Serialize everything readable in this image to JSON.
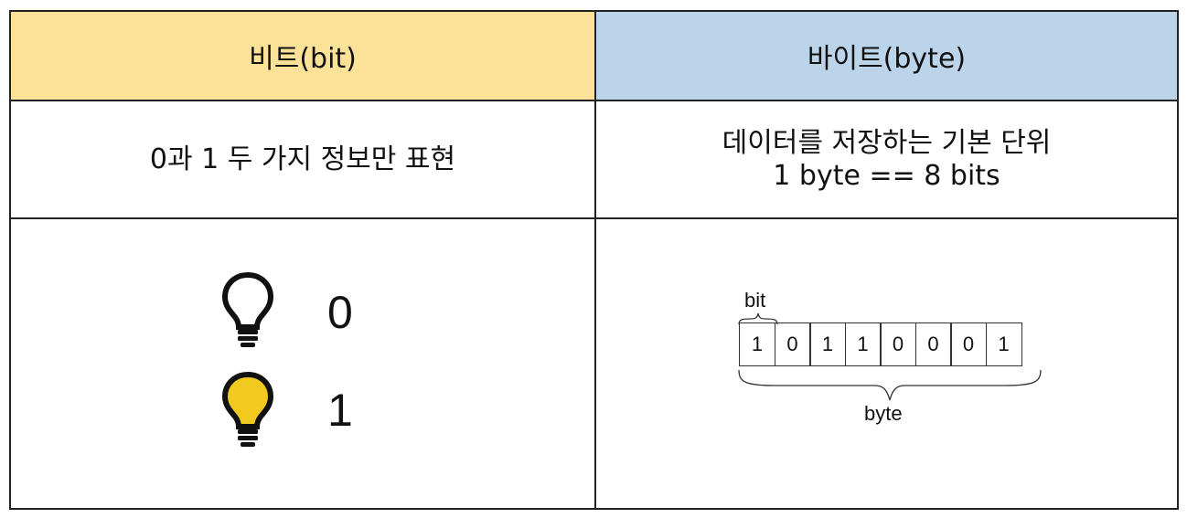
{
  "header": {
    "bit_title": "비트(bit)",
    "byte_title": "바이트(byte)",
    "bit_bg": "#fce299",
    "byte_bg": "#bcd4ea"
  },
  "description": {
    "bit": "0과 1 두 가지 정보만 표현",
    "byte_line1": "데이터를 저장하는 기본 단위",
    "byte_line2": "1 byte == 8 bits"
  },
  "illustration": {
    "off_value": "0",
    "on_value": "1",
    "off_icon": "lightbulb-outline-icon",
    "on_icon": "lightbulb-filled-icon",
    "on_color": "#f2c91e",
    "bit_label": "bit",
    "byte_label": "byte",
    "bits": [
      "1",
      "0",
      "1",
      "1",
      "0",
      "0",
      "0",
      "1"
    ]
  }
}
